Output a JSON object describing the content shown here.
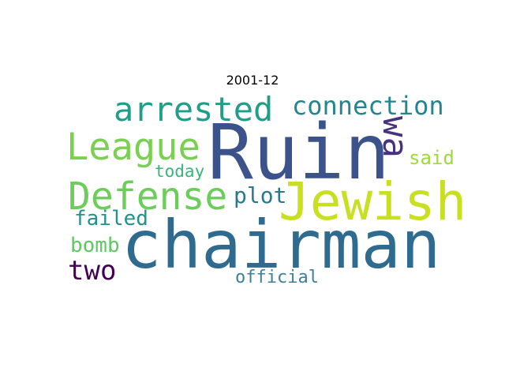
{
  "title": "2001-12",
  "words": [
    {
      "key": "chairman",
      "text": "chairman",
      "color": "#2f6b8e"
    },
    {
      "key": "ruin",
      "text": "Ruin",
      "color": "#3b528b"
    },
    {
      "key": "jewish",
      "text": "Jewish",
      "color": "#c8e020"
    },
    {
      "key": "defense",
      "text": "Defense",
      "color": "#6ccd5a"
    },
    {
      "key": "league",
      "text": "League",
      "color": "#7ad151"
    },
    {
      "key": "arrested",
      "text": "arrested",
      "color": "#1f9e89"
    },
    {
      "key": "connection",
      "text": "connection",
      "color": "#25858e"
    },
    {
      "key": "wa",
      "text": "wa",
      "color": "#46327e"
    },
    {
      "key": "two",
      "text": "two",
      "color": "#440154"
    },
    {
      "key": "plot",
      "text": "plot",
      "color": "#2a788e"
    },
    {
      "key": "failed",
      "text": "failed",
      "color": "#21918c"
    },
    {
      "key": "bomb",
      "text": "bomb",
      "color": "#5ec962"
    },
    {
      "key": "today",
      "text": "today",
      "color": "#35b779"
    },
    {
      "key": "said",
      "text": "said",
      "color": "#a0da39"
    },
    {
      "key": "official",
      "text": "official",
      "color": "#3e7f9a"
    }
  ]
}
